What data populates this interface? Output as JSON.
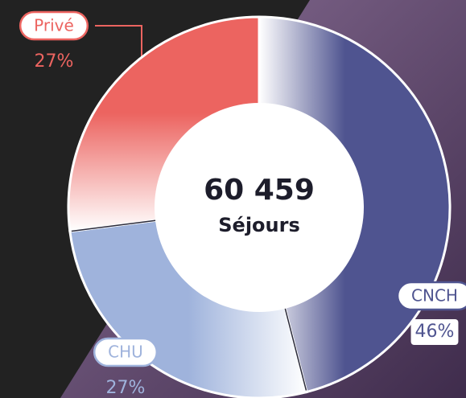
{
  "chart_data": {
    "type": "donut",
    "center_value": "60 459",
    "center_label": "Séjours",
    "categories": [
      "CNCH",
      "CHU",
      "Privé"
    ],
    "values": [
      46,
      27,
      27
    ],
    "value_labels": [
      "46%",
      "27%",
      "27%"
    ],
    "colors": [
      "#4f5490",
      "#9fb3dc",
      "#ec6460"
    ]
  }
}
